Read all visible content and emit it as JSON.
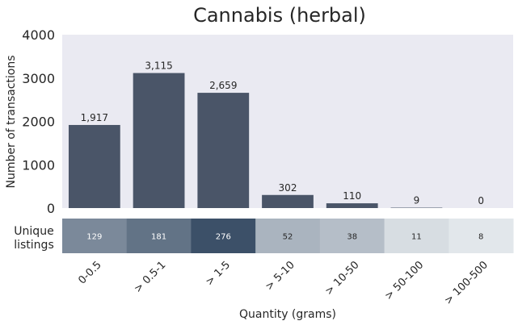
{
  "chart_data": {
    "type": "bar",
    "title": "Cannabis (herbal)",
    "xlabel": "Quantity (grams)",
    "ylabel": "Number of transactions",
    "ylim": [
      0,
      4000
    ],
    "yticks": [
      "0",
      "1000",
      "2000",
      "3000",
      "4000"
    ],
    "ytick_values": [
      0,
      1000,
      2000,
      3000,
      4000
    ],
    "categories": [
      "0-0.5",
      "> 0.5-1",
      "> 1-5",
      "> 5-10",
      "> 10-50",
      "> 50-100",
      "> 100-500"
    ],
    "values": [
      1917,
      3115,
      2659,
      302,
      110,
      9,
      0
    ],
    "value_labels": [
      "1,917",
      "3,115",
      "2,659",
      "302",
      "110",
      "9",
      "0"
    ],
    "bar_color": "#4a5568",
    "plot_background": "#eaeaf2",
    "grid": false,
    "heatmap": {
      "label_line1": "Unique",
      "label_line2": "listings",
      "values": [
        129,
        181,
        276,
        52,
        38,
        11,
        8
      ],
      "value_labels": [
        "129",
        "181",
        "276",
        "52",
        "38",
        "11",
        "8"
      ],
      "color_low": "#e2e7eb",
      "color_high": "#3c5068"
    }
  }
}
